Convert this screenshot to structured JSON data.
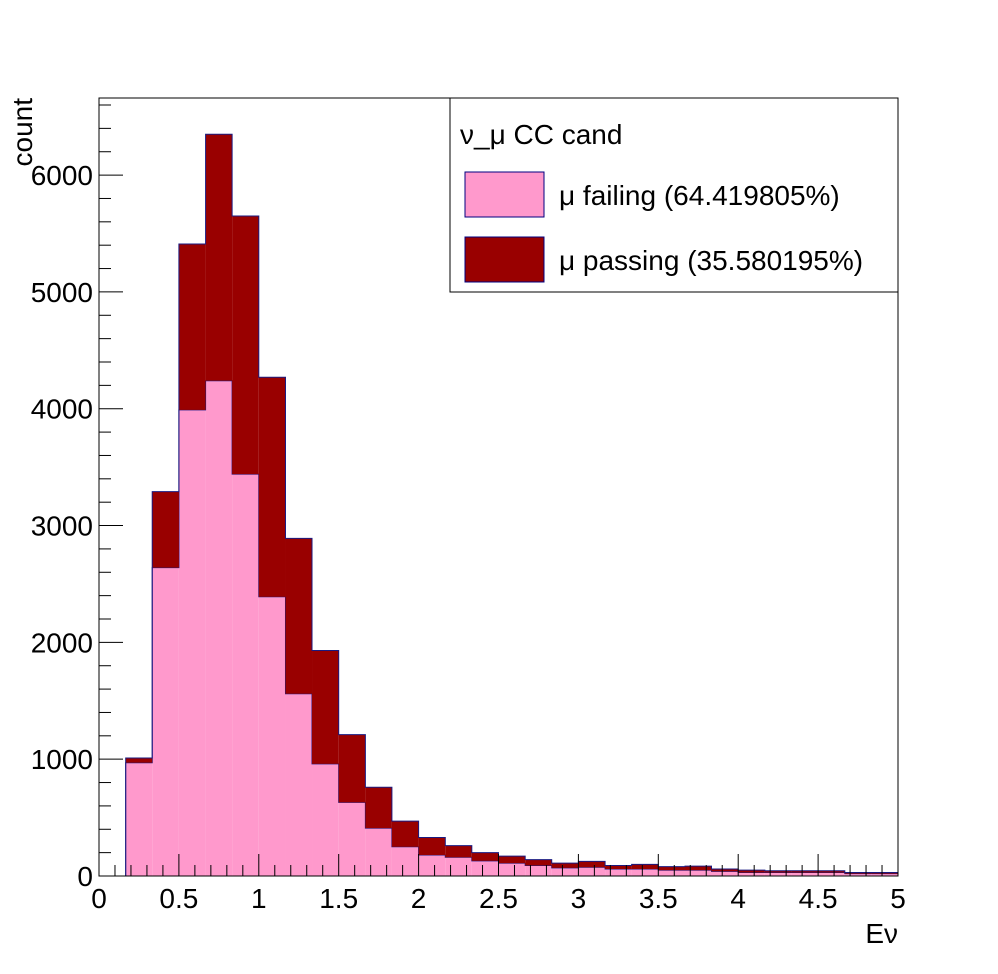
{
  "chart_data": {
    "type": "bar",
    "stacked": true,
    "histogram": true,
    "xlabel": "Eν",
    "ylabel": "count",
    "xlim": [
      0,
      5
    ],
    "ylim": [
      0,
      6660
    ],
    "bin_edges": [
      0,
      0.167,
      0.333,
      0.5,
      0.667,
      0.833,
      1.0,
      1.167,
      1.333,
      1.5,
      1.667,
      1.833,
      2.0,
      2.167,
      2.333,
      2.5,
      2.667,
      2.833,
      3.0,
      3.167,
      3.333,
      3.5,
      3.667,
      3.833,
      4.0,
      4.167,
      4.333,
      4.5,
      4.667,
      4.833,
      5.0
    ],
    "x_ticks": [
      0,
      0.5,
      1,
      1.5,
      2,
      2.5,
      3,
      3.5,
      4,
      4.5,
      5
    ],
    "x_tick_labels": [
      "0",
      "0.5",
      "1",
      "1.5",
      "2",
      "2.5",
      "3",
      "3.5",
      "4",
      "4.5",
      "5"
    ],
    "y_ticks": [
      0,
      1000,
      2000,
      3000,
      4000,
      5000,
      6000
    ],
    "y_tick_labels": [
      "0",
      "1000",
      "2000",
      "3000",
      "4000",
      "5000",
      "6000"
    ],
    "grid": false,
    "legend_position": "top-right",
    "legend_title": "ν_μ CC cand",
    "series": [
      {
        "name": "μ failing (64.419805%)",
        "color": "#ff99cc",
        "values": [
          0,
          970,
          2640,
          3990,
          4240,
          3440,
          2390,
          1560,
          960,
          630,
          410,
          250,
          180,
          160,
          130,
          110,
          90,
          70,
          75,
          60,
          60,
          50,
          50,
          40,
          30,
          30,
          30,
          30,
          20,
          20
        ]
      },
      {
        "name": "μ passing (35.580195%)",
        "color": "#990000",
        "values": [
          0,
          40,
          650,
          1420,
          2110,
          2210,
          1880,
          1330,
          970,
          580,
          350,
          220,
          150,
          100,
          70,
          60,
          50,
          40,
          50,
          30,
          40,
          30,
          35,
          20,
          20,
          15,
          15,
          15,
          10,
          10
        ]
      }
    ]
  }
}
